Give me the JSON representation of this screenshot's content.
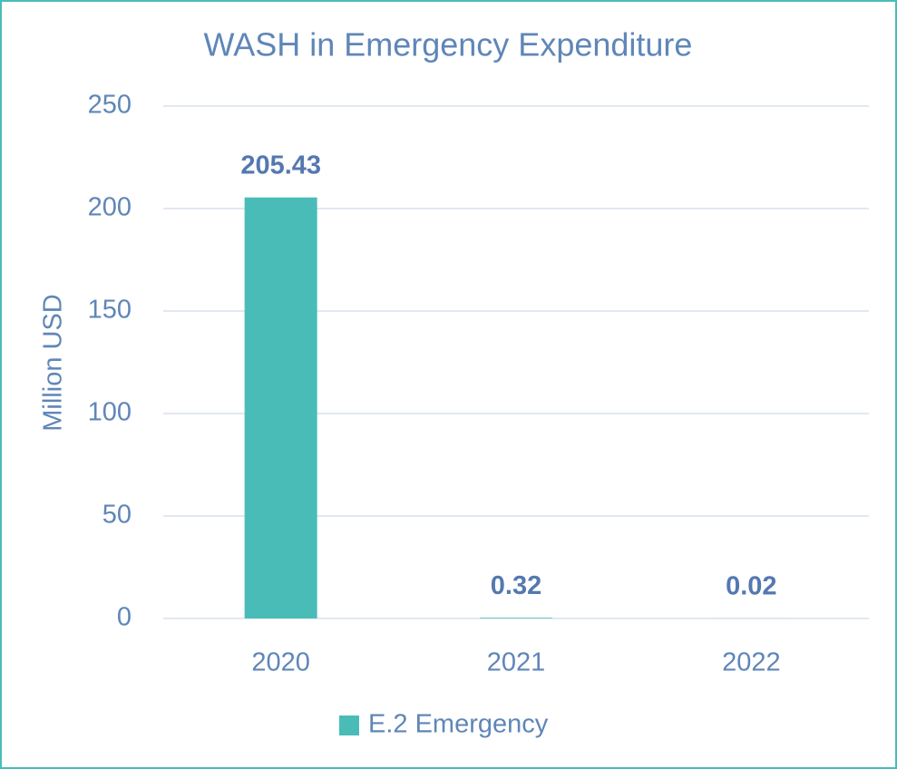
{
  "chart_data": {
    "type": "bar",
    "title": "WASH in Emergency Expenditure",
    "y_label": "Million USD",
    "categories": [
      "2020",
      "2021",
      "2022"
    ],
    "series": [
      {
        "name": "E.2 Emergency",
        "color": "#4abcb8",
        "values": [
          205.43,
          0.32,
          0.02
        ]
      }
    ],
    "ylim": [
      0,
      250
    ],
    "yticks": [
      0,
      50,
      100,
      150,
      200,
      250
    ],
    "grid": true,
    "legend": "bottom"
  }
}
